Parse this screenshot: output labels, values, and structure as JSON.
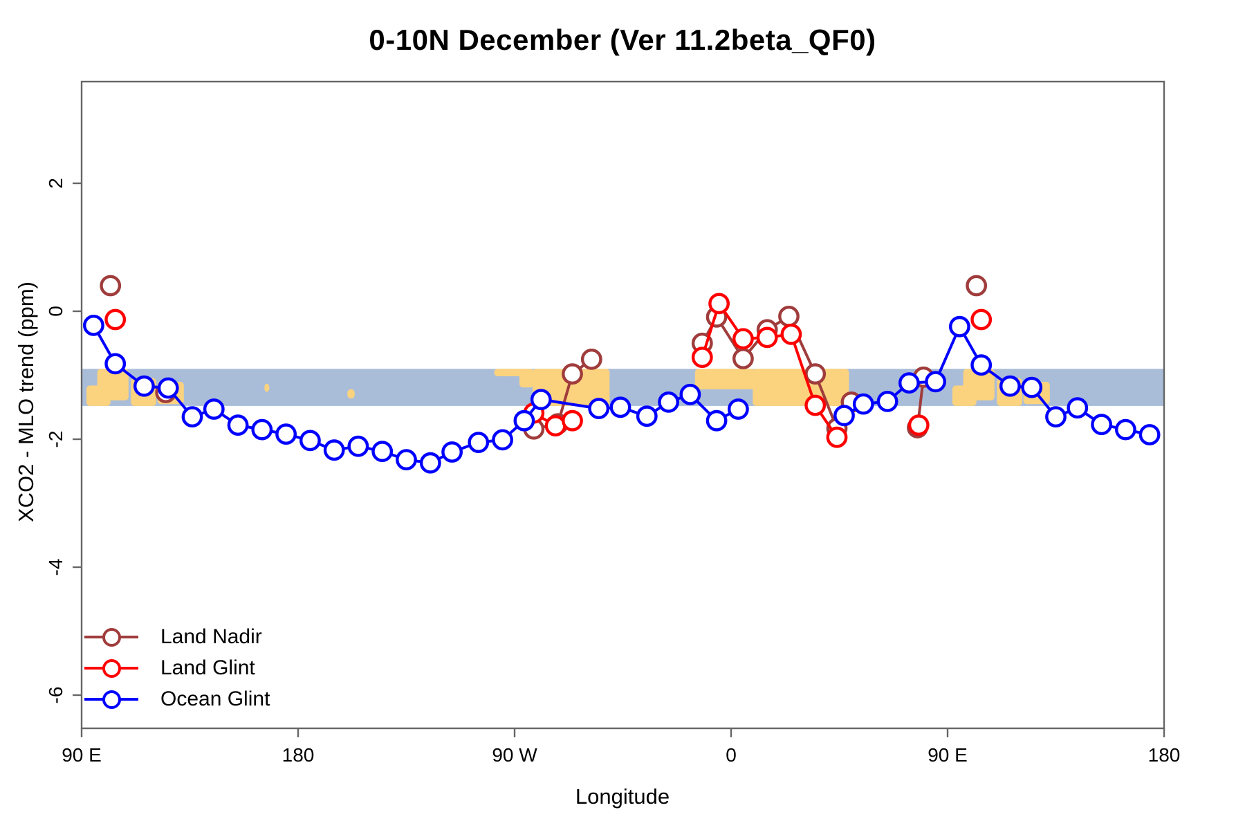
{
  "title": "0-10N December (Ver 11.2beta_QF0)",
  "chart_data": {
    "type": "line",
    "title": "0-10N December (Ver 11.2beta_QF0)",
    "xlabel": "Longitude",
    "ylabel": "XCO2 - MLO trend (ppm)",
    "x_range": [
      90,
      540
    ],
    "y_range": [
      -6.52,
      3.59
    ],
    "grid": false,
    "legend_position": "bottom-left",
    "x_ticks": [
      {
        "value": 90,
        "label": "90 E"
      },
      {
        "value": 180,
        "label": "180"
      },
      {
        "value": 270,
        "label": "90 W"
      },
      {
        "value": 360,
        "label": "0"
      },
      {
        "value": 450,
        "label": "90 E"
      },
      {
        "value": 540,
        "label": "180"
      }
    ],
    "y_ticks": [
      {
        "value": 2,
        "label": "2"
      },
      {
        "value": 0,
        "label": "0"
      },
      {
        "value": -2,
        "label": "-2"
      },
      {
        "value": -4,
        "label": "-4"
      },
      {
        "value": -6,
        "label": "-6"
      }
    ],
    "colors": {
      "land_nadir": "#A03C3C",
      "land_glint": "#FF0000",
      "ocean_glint": "#0000FF",
      "frame": "#666666",
      "band_ocean": "#A9BDD9",
      "band_land": "#FBD27E"
    },
    "map_band": {
      "value_top": -0.9,
      "value_bottom": -1.48,
      "ocean_color": "#A9BDD9",
      "land_color": "#FBD27E",
      "land_patches": [
        {
          "lon0": 92.0,
          "lon1": 102.0,
          "top": 0.45,
          "bot": 1.0
        },
        {
          "lon0": 96.5,
          "lon1": 109.5,
          "top": 0.0,
          "bot": 0.85
        },
        {
          "lon0": 110.5,
          "lon1": 121.0,
          "top": 0.25,
          "bot": 1.0
        },
        {
          "lon0": 121.5,
          "lon1": 132.5,
          "top": 0.35,
          "bot": 0.95
        },
        {
          "lon0": 166.0,
          "lon1": 168.0,
          "top": 0.4,
          "bot": 0.62
        },
        {
          "lon0": 200.5,
          "lon1": 203.5,
          "top": 0.55,
          "bot": 0.8
        },
        {
          "lon0": 261.5,
          "lon1": 277.0,
          "top": 0.0,
          "bot": 0.2
        },
        {
          "lon0": 272.0,
          "lon1": 278.0,
          "top": 0.0,
          "bot": 0.5
        },
        {
          "lon0": 277.5,
          "lon1": 309.5,
          "top": 0.0,
          "bot": 1.0
        },
        {
          "lon0": 345.0,
          "lon1": 370.0,
          "top": 0.0,
          "bot": 0.55
        },
        {
          "lon0": 369.0,
          "lon1": 409.0,
          "top": 0.0,
          "bot": 1.0
        },
        {
          "lon0": 452.0,
          "lon1": 462.0,
          "top": 0.45,
          "bot": 1.0
        },
        {
          "lon0": 456.5,
          "lon1": 469.5,
          "top": 0.0,
          "bot": 0.85
        },
        {
          "lon0": 470.5,
          "lon1": 481.0,
          "top": 0.25,
          "bot": 1.0
        },
        {
          "lon0": 481.5,
          "lon1": 492.5,
          "top": 0.35,
          "bot": 0.95
        }
      ]
    },
    "series": [
      {
        "name": "Land Nadir",
        "color": "#A03C3C",
        "segments": [
          [
            [
              102,
              0.4
            ]
          ],
          [
            [
              125,
              -1.27
            ]
          ],
          [
            [
              278,
              -1.84
            ],
            [
              288,
              -1.76
            ],
            [
              294,
              -0.98
            ],
            [
              302,
              -0.75
            ]
          ],
          [
            [
              348,
              -0.5
            ],
            [
              354,
              -0.09
            ],
            [
              365,
              -0.74
            ],
            [
              375,
              -0.29
            ],
            [
              384,
              -0.08
            ],
            [
              395,
              -0.98
            ],
            [
              404,
              -1.83
            ],
            [
              410,
              -1.42
            ]
          ],
          [
            [
              437.5,
              -1.82
            ],
            [
              440,
              -1.03
            ]
          ],
          [
            [
              462,
              0.4
            ]
          ]
        ]
      },
      {
        "name": "Land Glint",
        "color": "#FF0000",
        "segments": [
          [
            [
              104,
              -0.13
            ]
          ],
          [
            [
              278,
              -1.59
            ],
            [
              287,
              -1.79
            ],
            [
              294,
              -1.71
            ]
          ],
          [
            [
              348,
              -0.72
            ],
            [
              355,
              0.12
            ],
            [
              365,
              -0.43
            ],
            [
              375,
              -0.41
            ],
            [
              385,
              -0.36
            ],
            [
              395,
              -1.47
            ],
            [
              404,
              -1.97
            ]
          ],
          [
            [
              438,
              -1.78
            ]
          ],
          [
            [
              464,
              -0.13
            ]
          ]
        ]
      },
      {
        "name": "Ocean Glint",
        "color": "#0000FF",
        "segments": [
          [
            [
              95,
              -0.22
            ],
            [
              104,
              -0.82
            ],
            [
              116,
              -1.17
            ],
            [
              126,
              -1.2
            ],
            [
              136,
              -1.65
            ],
            [
              145,
              -1.53
            ],
            [
              155,
              -1.78
            ],
            [
              165,
              -1.85
            ],
            [
              175,
              -1.92
            ],
            [
              185,
              -2.02
            ],
            [
              195,
              -2.17
            ],
            [
              205,
              -2.11
            ],
            [
              215,
              -2.19
            ],
            [
              225,
              -2.32
            ],
            [
              235,
              -2.37
            ],
            [
              244,
              -2.2
            ],
            [
              255,
              -2.05
            ],
            [
              265,
              -2.01
            ],
            [
              274,
              -1.71
            ],
            [
              281,
              -1.38
            ],
            [
              305,
              -1.52
            ],
            [
              314,
              -1.5
            ],
            [
              325,
              -1.64
            ],
            [
              334,
              -1.42
            ],
            [
              343,
              -1.3
            ],
            [
              354,
              -1.71
            ],
            [
              363,
              -1.53
            ]
          ],
          [
            [
              407,
              -1.63
            ],
            [
              415,
              -1.45
            ],
            [
              425,
              -1.41
            ],
            [
              434,
              -1.12
            ],
            [
              445,
              -1.1
            ],
            [
              455,
              -0.24
            ],
            [
              464,
              -0.84
            ],
            [
              476,
              -1.17
            ],
            [
              485,
              -1.19
            ],
            [
              495,
              -1.65
            ],
            [
              504,
              -1.51
            ],
            [
              514,
              -1.77
            ],
            [
              524,
              -1.85
            ],
            [
              534,
              -1.93
            ]
          ]
        ]
      }
    ]
  },
  "legend": {
    "items": [
      {
        "label": "Land Nadir",
        "color": "#A03C3C"
      },
      {
        "label": "Land Glint",
        "color": "#FF0000"
      },
      {
        "label": "Ocean Glint",
        "color": "#0000FF"
      }
    ]
  }
}
